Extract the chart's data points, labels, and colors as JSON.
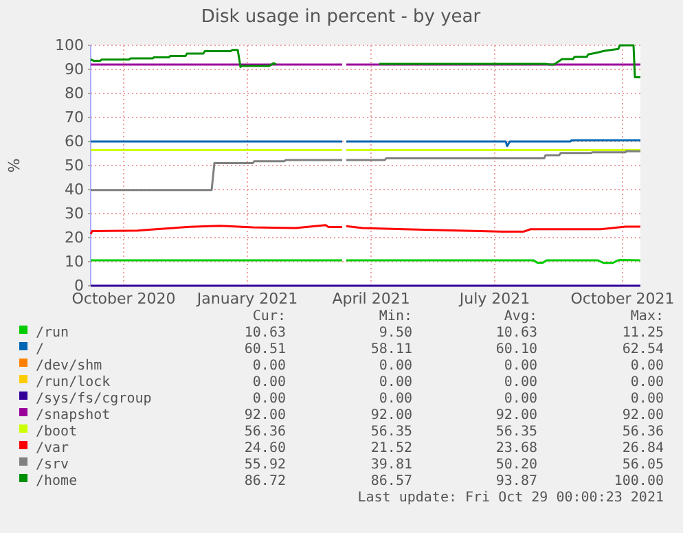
{
  "chart_data": {
    "type": "line",
    "title": "Disk usage in percent - by year",
    "ylabel": "%",
    "xlim": [
      "2020-09-24",
      "2021-10-29"
    ],
    "ylim": [
      0,
      100
    ],
    "xticks": [
      {
        "value": "2020-10-18",
        "label": "October 2020"
      },
      {
        "value": "2021-01-16",
        "label": "January 2021"
      },
      {
        "value": "2021-04-16",
        "label": "April 2021"
      },
      {
        "value": "2021-07-15",
        "label": "July 2021"
      },
      {
        "value": "2021-10-16",
        "label": "October 2021"
      }
    ],
    "yticks": [
      0,
      10,
      20,
      30,
      40,
      50,
      60,
      70,
      80,
      90,
      100
    ],
    "grid": true,
    "legend": "bottom",
    "series": [
      {
        "name": "/run",
        "color": "#00cc00",
        "x": [
          "2020-09-24",
          "2021-03-26",
          "2021-03-27",
          "2021-03-29",
          "2021-08-12",
          "2021-08-15",
          "2021-08-19",
          "2021-08-22",
          "2021-09-28",
          "2021-10-02",
          "2021-10-09",
          "2021-10-12",
          "2021-10-14",
          "2021-10-29"
        ],
        "values": [
          10.6,
          10.6,
          null,
          10.6,
          10.6,
          9.6,
          9.6,
          10.6,
          10.6,
          9.5,
          9.5,
          10.4,
          10.7,
          10.6
        ]
      },
      {
        "name": "/",
        "color": "#0066b3",
        "x": [
          "2020-09-24",
          "2021-03-25",
          "2021-03-26",
          "2021-03-27",
          "2021-03-29",
          "2021-07-23",
          "2021-07-24",
          "2021-07-26",
          "2021-09-08",
          "2021-09-09",
          "2021-10-29"
        ],
        "values": [
          60.0,
          60.0,
          60.0,
          null,
          60.0,
          60.0,
          58.1,
          60.0,
          60.0,
          60.5,
          60.5
        ]
      },
      {
        "name": "/dev/shm",
        "color": "#ff8000"
      },
      {
        "name": "/run/lock",
        "color": "#ffcc00"
      },
      {
        "name": "/sys/fs/cgroup",
        "color": "#330099",
        "x": [
          "2020-09-24",
          "2021-10-29"
        ],
        "values": [
          0,
          0
        ]
      },
      {
        "name": "/snapshot",
        "color": "#990099",
        "x": [
          "2020-09-24",
          "2021-03-26",
          "2021-03-27",
          "2021-03-29",
          "2021-10-29"
        ],
        "values": [
          92,
          92,
          null,
          92,
          92
        ]
      },
      {
        "name": "/boot",
        "color": "#ccff00",
        "x": [
          "2020-09-24",
          "2021-03-26",
          "2021-03-27",
          "2021-03-29",
          "2021-10-29"
        ],
        "values": [
          56.4,
          56.4,
          null,
          56.4,
          56.4
        ]
      },
      {
        "name": "/var",
        "color": "#ff0000",
        "x": [
          "2020-09-24",
          "2020-09-25",
          "2020-10-28",
          "2020-11-05",
          "2020-12-05",
          "2020-12-27",
          "2021-01-20",
          "2021-02-20",
          "2021-03-14",
          "2021-03-16",
          "2021-03-26",
          "2021-03-27",
          "2021-03-29",
          "2021-04-10",
          "2021-05-10",
          "2021-07-20",
          "2021-08-05",
          "2021-08-10",
          "2021-09-30",
          "2021-10-18",
          "2021-10-29"
        ],
        "values": [
          21.5,
          22.7,
          22.9,
          23.3,
          24.5,
          24.9,
          24.3,
          24.0,
          25.2,
          24.4,
          24.4,
          null,
          24.8,
          24.0,
          23.5,
          22.5,
          22.5,
          23.5,
          23.5,
          24.6,
          24.6
        ]
      },
      {
        "name": "/srv",
        "color": "#808080",
        "x": [
          "2020-09-24",
          "2020-12-21",
          "2020-12-23",
          "2021-01-20",
          "2021-01-21",
          "2021-02-12",
          "2021-02-13",
          "2021-03-26",
          "2021-03-27",
          "2021-03-29",
          "2021-04-26",
          "2021-04-27",
          "2021-08-20",
          "2021-08-21",
          "2021-08-31",
          "2021-09-01",
          "2021-09-23",
          "2021-09-24",
          "2021-10-18",
          "2021-10-19",
          "2021-10-29"
        ],
        "values": [
          39.8,
          39.8,
          51.0,
          51.0,
          51.8,
          51.8,
          52.3,
          52.3,
          null,
          52.3,
          52.3,
          53.0,
          53.0,
          54.3,
          54.3,
          55.2,
          55.2,
          55.5,
          55.5,
          56.0,
          55.9
        ]
      },
      {
        "name": "/home",
        "color": "#008f00",
        "x": [
          "2020-09-24",
          "2020-09-26",
          "2020-10-01",
          "2020-10-02",
          "2020-10-22",
          "2020-10-23",
          "2020-11-08",
          "2020-11-09",
          "2020-11-20",
          "2020-11-21",
          "2020-12-02",
          "2020-12-03",
          "2020-12-15",
          "2020-12-16",
          "2021-01-04",
          "2021-01-05",
          "2021-01-09",
          "2021-01-11",
          "2021-01-12",
          "2021-02-01",
          "2021-02-04",
          "2021-02-06",
          "2021-02-07",
          "2021-04-22",
          "2021-08-21",
          "2021-08-24",
          "2021-08-27",
          "2021-08-31",
          "2021-09-02",
          "2021-09-10",
          "2021-09-11",
          "2021-09-20",
          "2021-09-21",
          "2021-09-26",
          "2021-10-03",
          "2021-10-13",
          "2021-10-14",
          "2021-10-24",
          "2021-10-25",
          "2021-10-29"
        ],
        "values": [
          94.2,
          93.6,
          93.6,
          94.1,
          94.1,
          94.6,
          94.6,
          95.0,
          95.0,
          95.6,
          95.6,
          96.6,
          96.6,
          97.6,
          97.6,
          98.1,
          98.1,
          91.0,
          91.4,
          91.4,
          92.6,
          92.0,
          null,
          92.3,
          92.3,
          92.0,
          92.0,
          93.5,
          94.3,
          94.3,
          95.2,
          95.2,
          96.2,
          96.8,
          97.7,
          98.5,
          100,
          100,
          86.7,
          86.7
        ]
      }
    ],
    "annotations": [
      "Cur:",
      "Min:",
      "Avg:",
      "Max:",
      "10.63",
      "9.50",
      "10.63",
      "11.25",
      "60.51",
      "58.11",
      "60.10",
      "62.54",
      "0.00",
      "0.00",
      "0.00",
      "0.00",
      "0.00",
      "0.00",
      "0.00",
      "0.00",
      "0.00",
      "0.00",
      "0.00",
      "0.00",
      "92.00",
      "92.00",
      "92.00",
      "92.00",
      "56.36",
      "56.35",
      "56.35",
      "56.36",
      "24.60",
      "21.52",
      "23.68",
      "26.84",
      "55.92",
      "39.81",
      "50.20",
      "56.05",
      "86.72",
      "86.57",
      "93.87",
      "100.00",
      "Last update: Fri Oct 29 00:00:23 2021"
    ]
  }
}
